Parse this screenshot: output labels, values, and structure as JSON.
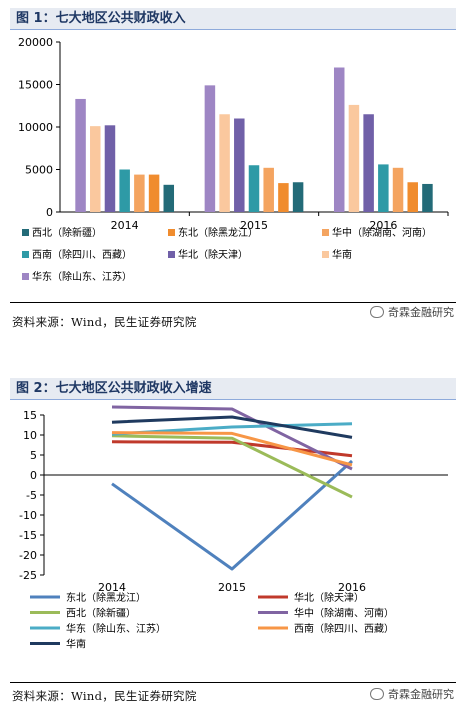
{
  "figure1": {
    "title": "图 1：七大地区公共财政收入",
    "source": "资料来源：Wind，民生证券研究院",
    "watermark": "奇霖金融研究"
  },
  "figure2": {
    "title": "图 2：七大地区公共财政收入增速",
    "source": "资料来源：Wind，民生证券研究院",
    "watermark": "奇霖金融研究"
  },
  "chart_data": [
    {
      "type": "bar",
      "title": "七大地区公共财政收入",
      "categories": [
        "2014",
        "2015",
        "2016"
      ],
      "ylim": [
        0,
        20000
      ],
      "yticks": [
        0,
        5000,
        10000,
        15000,
        20000
      ],
      "grid": false,
      "legend_position": "bottom",
      "series": [
        {
          "name": "华东（除山东、江苏）",
          "color": "#9e86c4",
          "values": [
            13300,
            14900,
            17000
          ]
        },
        {
          "name": "华南",
          "color": "#fac89e",
          "values": [
            10100,
            11500,
            12600
          ]
        },
        {
          "name": "华北（除天津）",
          "color": "#7060a8",
          "values": [
            10200,
            11000,
            11500
          ]
        },
        {
          "name": "西南（除四川、西藏）",
          "color": "#2e9aa6",
          "values": [
            5000,
            5500,
            5600
          ]
        },
        {
          "name": "华中（除湖南、河南）",
          "color": "#f4a460",
          "values": [
            4400,
            5200,
            5200
          ]
        },
        {
          "name": "东北（除黑龙江）",
          "color": "#f08c2e",
          "values": [
            4400,
            3400,
            3500
          ]
        },
        {
          "name": "西北（除新疆）",
          "color": "#236b78",
          "values": [
            3200,
            3500,
            3300
          ]
        }
      ],
      "legend_order": [
        "西北（除新疆）",
        "东北（除黑龙江）",
        "华中（除湖南、河南）",
        "西南（除四川、西藏）",
        "华北（除天津）",
        "华南",
        "华东（除山东、江苏）"
      ]
    },
    {
      "type": "line",
      "title": "七大地区公共财政收入增速",
      "x": [
        "2014",
        "2015",
        "2016"
      ],
      "ylim": [
        -25,
        15
      ],
      "yticks": [
        -25,
        -20,
        -15,
        -10,
        -5,
        0,
        5,
        10,
        15
      ],
      "grid": false,
      "legend_position": "bottom",
      "series": [
        {
          "name": "东北（除黑龙江）",
          "color": "#4f81bd",
          "values": [
            -2.2,
            -23.5,
            3.5
          ]
        },
        {
          "name": "华北（除天津）",
          "color": "#c0392b",
          "values": [
            8.3,
            8.2,
            4.8
          ]
        },
        {
          "name": "西北（除新疆）",
          "color": "#9bbb59",
          "values": [
            9.8,
            9.2,
            -5.5
          ]
        },
        {
          "name": "华中（除湖南、河南）",
          "color": "#8064a2",
          "values": [
            17.0,
            16.5,
            1.5
          ]
        },
        {
          "name": "华东（除山东、江苏）",
          "color": "#4bacc6",
          "values": [
            10.2,
            12.0,
            12.8
          ]
        },
        {
          "name": "西南（除四川、西藏）",
          "color": "#f79646",
          "values": [
            10.6,
            10.4,
            2.5
          ]
        },
        {
          "name": "华南",
          "color": "#1f3a5f",
          "values": [
            13.2,
            14.5,
            9.4
          ]
        }
      ]
    }
  ]
}
